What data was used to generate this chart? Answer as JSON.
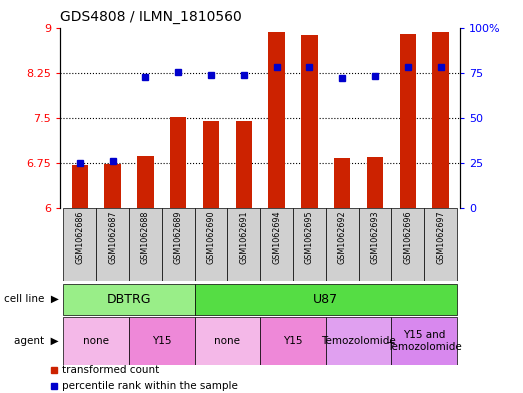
{
  "title": "GDS4808 / ILMN_1810560",
  "samples": [
    "GSM1062686",
    "GSM1062687",
    "GSM1062688",
    "GSM1062689",
    "GSM1062690",
    "GSM1062691",
    "GSM1062694",
    "GSM1062695",
    "GSM1062692",
    "GSM1062693",
    "GSM1062696",
    "GSM1062697"
  ],
  "bar_values": [
    6.72,
    6.73,
    6.87,
    7.52,
    7.45,
    7.45,
    8.92,
    8.87,
    6.83,
    6.85,
    8.9,
    8.92
  ],
  "bar_bottom": 6.0,
  "blue_dots": [
    6.75,
    6.78,
    8.18,
    8.26,
    8.22,
    8.21,
    8.35,
    8.35,
    8.17,
    8.19,
    8.35,
    8.35
  ],
  "bar_color": "#cc2200",
  "dot_color": "#0000cc",
  "ylim_left": [
    6.0,
    9.0
  ],
  "ylim_right": [
    0,
    100
  ],
  "yticks_left": [
    6.0,
    6.75,
    7.5,
    8.25,
    9.0
  ],
  "ytick_labels_left": [
    "6",
    "6.75",
    "7.5",
    "8.25",
    "9"
  ],
  "yticks_right": [
    0,
    25,
    50,
    75,
    100
  ],
  "ytick_labels_right": [
    "0",
    "25",
    "50",
    "75",
    "100%"
  ],
  "hlines": [
    6.75,
    7.5,
    8.25
  ],
  "cell_line_groups": [
    {
      "label": "DBTRG",
      "start": 0,
      "end": 4,
      "color": "#99ee88"
    },
    {
      "label": "U87",
      "start": 4,
      "end": 12,
      "color": "#55dd44"
    }
  ],
  "agent_groups": [
    {
      "label": "none",
      "start": 0,
      "end": 2,
      "color": "#f4b8e8"
    },
    {
      "label": "Y15",
      "start": 2,
      "end": 4,
      "color": "#ee88d8"
    },
    {
      "label": "none",
      "start": 4,
      "end": 6,
      "color": "#f4b8e8"
    },
    {
      "label": "Y15",
      "start": 6,
      "end": 8,
      "color": "#ee88d8"
    },
    {
      "label": "Temozolomide",
      "start": 8,
      "end": 10,
      "color": "#e0a0f0"
    },
    {
      "label": "Y15 and\nTemozolomide",
      "start": 10,
      "end": 12,
      "color": "#d888ee"
    }
  ],
  "bar_width": 0.5,
  "grid_color": "#000000",
  "sample_box_color": "#d0d0d0"
}
